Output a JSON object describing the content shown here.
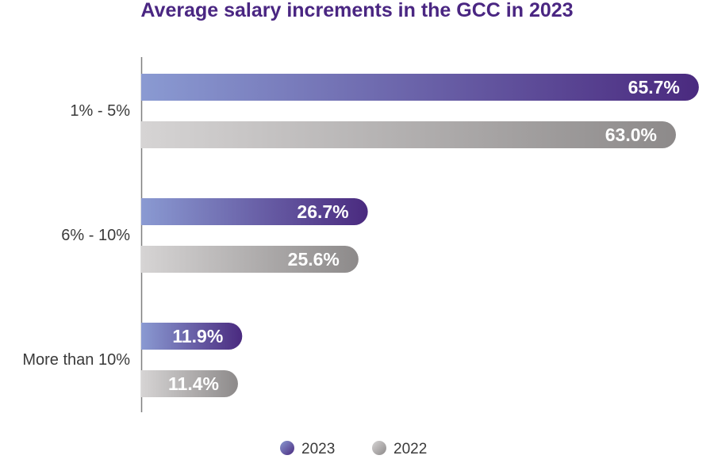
{
  "chart_data": {
    "type": "bar",
    "orientation": "horizontal",
    "title": "Average salary increments in the GCC in 2023",
    "categories": [
      "1% - 5%",
      "6% - 10%",
      "More than 10%"
    ],
    "series": [
      {
        "name": "2023",
        "values": [
          65.7,
          26.7,
          11.9
        ],
        "labels": [
          "65.7%",
          "26.7%",
          "11.9%"
        ],
        "color_start": "#8a9ad2",
        "color_end": "#4a2a7f"
      },
      {
        "name": "2022",
        "values": [
          63.0,
          25.6,
          11.4
        ],
        "labels": [
          "63.0%",
          "25.6%",
          "11.4%"
        ],
        "color_start": "#d6d4d4",
        "color_end": "#8d8a8a"
      }
    ],
    "xlim": [
      0,
      67.3
    ],
    "xlabel": "",
    "ylabel": "",
    "grid": false,
    "legend_position": "bottom-center"
  },
  "colors": {
    "title": "#4a2682",
    "axis": "#7f7f7f",
    "text": "#3a3a3a"
  }
}
